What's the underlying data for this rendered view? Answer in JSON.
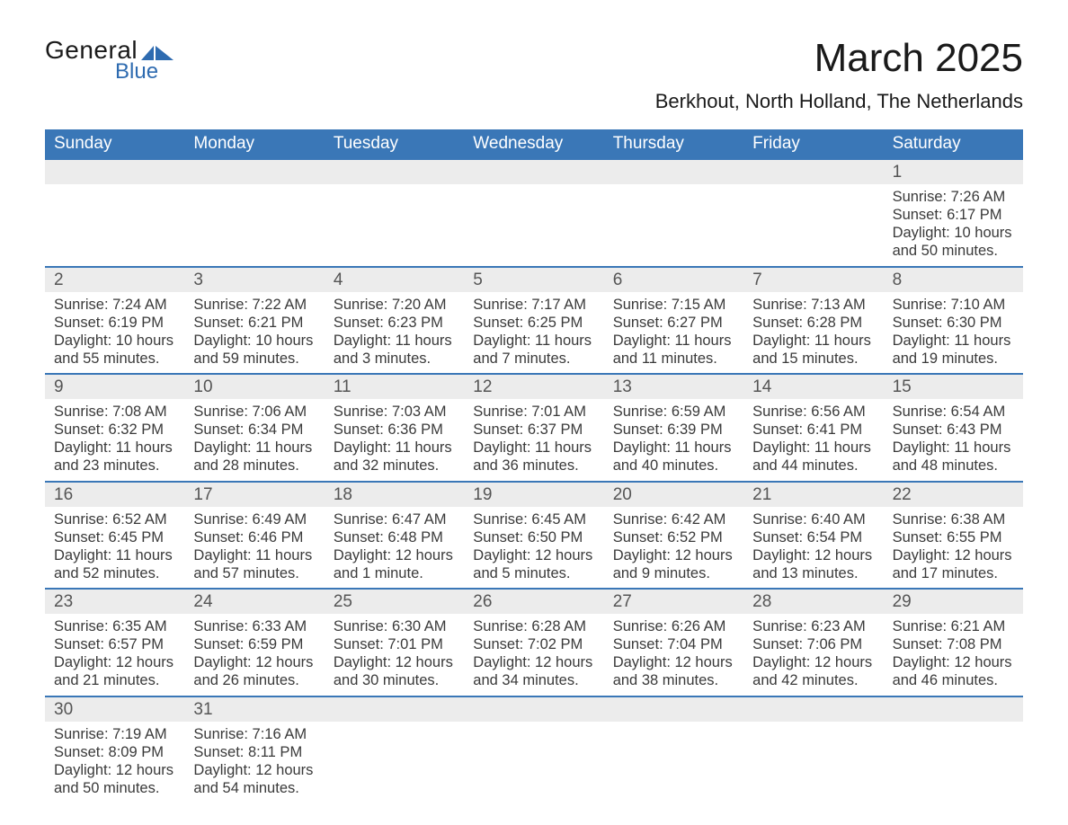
{
  "colors": {
    "header_bg": "#3a77b7",
    "header_text": "#ffffff",
    "daynum_bg": "#ececec",
    "border": "#3a77b7",
    "body_text": "#3a3a3a",
    "logo_blue": "#2e6bb0"
  },
  "logo": {
    "general": "General",
    "blue": "Blue"
  },
  "title": "March 2025",
  "location": "Berkhout, North Holland, The Netherlands",
  "day_headers": [
    "Sunday",
    "Monday",
    "Tuesday",
    "Wednesday",
    "Thursday",
    "Friday",
    "Saturday"
  ],
  "weeks": [
    [
      {
        "num": "",
        "sunrise": "",
        "sunset": "",
        "daylight": ""
      },
      {
        "num": "",
        "sunrise": "",
        "sunset": "",
        "daylight": ""
      },
      {
        "num": "",
        "sunrise": "",
        "sunset": "",
        "daylight": ""
      },
      {
        "num": "",
        "sunrise": "",
        "sunset": "",
        "daylight": ""
      },
      {
        "num": "",
        "sunrise": "",
        "sunset": "",
        "daylight": ""
      },
      {
        "num": "",
        "sunrise": "",
        "sunset": "",
        "daylight": ""
      },
      {
        "num": "1",
        "sunrise": "Sunrise: 7:26 AM",
        "sunset": "Sunset: 6:17 PM",
        "daylight": "Daylight: 10 hours and 50 minutes."
      }
    ],
    [
      {
        "num": "2",
        "sunrise": "Sunrise: 7:24 AM",
        "sunset": "Sunset: 6:19 PM",
        "daylight": "Daylight: 10 hours and 55 minutes."
      },
      {
        "num": "3",
        "sunrise": "Sunrise: 7:22 AM",
        "sunset": "Sunset: 6:21 PM",
        "daylight": "Daylight: 10 hours and 59 minutes."
      },
      {
        "num": "4",
        "sunrise": "Sunrise: 7:20 AM",
        "sunset": "Sunset: 6:23 PM",
        "daylight": "Daylight: 11 hours and 3 minutes."
      },
      {
        "num": "5",
        "sunrise": "Sunrise: 7:17 AM",
        "sunset": "Sunset: 6:25 PM",
        "daylight": "Daylight: 11 hours and 7 minutes."
      },
      {
        "num": "6",
        "sunrise": "Sunrise: 7:15 AM",
        "sunset": "Sunset: 6:27 PM",
        "daylight": "Daylight: 11 hours and 11 minutes."
      },
      {
        "num": "7",
        "sunrise": "Sunrise: 7:13 AM",
        "sunset": "Sunset: 6:28 PM",
        "daylight": "Daylight: 11 hours and 15 minutes."
      },
      {
        "num": "8",
        "sunrise": "Sunrise: 7:10 AM",
        "sunset": "Sunset: 6:30 PM",
        "daylight": "Daylight: 11 hours and 19 minutes."
      }
    ],
    [
      {
        "num": "9",
        "sunrise": "Sunrise: 7:08 AM",
        "sunset": "Sunset: 6:32 PM",
        "daylight": "Daylight: 11 hours and 23 minutes."
      },
      {
        "num": "10",
        "sunrise": "Sunrise: 7:06 AM",
        "sunset": "Sunset: 6:34 PM",
        "daylight": "Daylight: 11 hours and 28 minutes."
      },
      {
        "num": "11",
        "sunrise": "Sunrise: 7:03 AM",
        "sunset": "Sunset: 6:36 PM",
        "daylight": "Daylight: 11 hours and 32 minutes."
      },
      {
        "num": "12",
        "sunrise": "Sunrise: 7:01 AM",
        "sunset": "Sunset: 6:37 PM",
        "daylight": "Daylight: 11 hours and 36 minutes."
      },
      {
        "num": "13",
        "sunrise": "Sunrise: 6:59 AM",
        "sunset": "Sunset: 6:39 PM",
        "daylight": "Daylight: 11 hours and 40 minutes."
      },
      {
        "num": "14",
        "sunrise": "Sunrise: 6:56 AM",
        "sunset": "Sunset: 6:41 PM",
        "daylight": "Daylight: 11 hours and 44 minutes."
      },
      {
        "num": "15",
        "sunrise": "Sunrise: 6:54 AM",
        "sunset": "Sunset: 6:43 PM",
        "daylight": "Daylight: 11 hours and 48 minutes."
      }
    ],
    [
      {
        "num": "16",
        "sunrise": "Sunrise: 6:52 AM",
        "sunset": "Sunset: 6:45 PM",
        "daylight": "Daylight: 11 hours and 52 minutes."
      },
      {
        "num": "17",
        "sunrise": "Sunrise: 6:49 AM",
        "sunset": "Sunset: 6:46 PM",
        "daylight": "Daylight: 11 hours and 57 minutes."
      },
      {
        "num": "18",
        "sunrise": "Sunrise: 6:47 AM",
        "sunset": "Sunset: 6:48 PM",
        "daylight": "Daylight: 12 hours and 1 minute."
      },
      {
        "num": "19",
        "sunrise": "Sunrise: 6:45 AM",
        "sunset": "Sunset: 6:50 PM",
        "daylight": "Daylight: 12 hours and 5 minutes."
      },
      {
        "num": "20",
        "sunrise": "Sunrise: 6:42 AM",
        "sunset": "Sunset: 6:52 PM",
        "daylight": "Daylight: 12 hours and 9 minutes."
      },
      {
        "num": "21",
        "sunrise": "Sunrise: 6:40 AM",
        "sunset": "Sunset: 6:54 PM",
        "daylight": "Daylight: 12 hours and 13 minutes."
      },
      {
        "num": "22",
        "sunrise": "Sunrise: 6:38 AM",
        "sunset": "Sunset: 6:55 PM",
        "daylight": "Daylight: 12 hours and 17 minutes."
      }
    ],
    [
      {
        "num": "23",
        "sunrise": "Sunrise: 6:35 AM",
        "sunset": "Sunset: 6:57 PM",
        "daylight": "Daylight: 12 hours and 21 minutes."
      },
      {
        "num": "24",
        "sunrise": "Sunrise: 6:33 AM",
        "sunset": "Sunset: 6:59 PM",
        "daylight": "Daylight: 12 hours and 26 minutes."
      },
      {
        "num": "25",
        "sunrise": "Sunrise: 6:30 AM",
        "sunset": "Sunset: 7:01 PM",
        "daylight": "Daylight: 12 hours and 30 minutes."
      },
      {
        "num": "26",
        "sunrise": "Sunrise: 6:28 AM",
        "sunset": "Sunset: 7:02 PM",
        "daylight": "Daylight: 12 hours and 34 minutes."
      },
      {
        "num": "27",
        "sunrise": "Sunrise: 6:26 AM",
        "sunset": "Sunset: 7:04 PM",
        "daylight": "Daylight: 12 hours and 38 minutes."
      },
      {
        "num": "28",
        "sunrise": "Sunrise: 6:23 AM",
        "sunset": "Sunset: 7:06 PM",
        "daylight": "Daylight: 12 hours and 42 minutes."
      },
      {
        "num": "29",
        "sunrise": "Sunrise: 6:21 AM",
        "sunset": "Sunset: 7:08 PM",
        "daylight": "Daylight: 12 hours and 46 minutes."
      }
    ],
    [
      {
        "num": "30",
        "sunrise": "Sunrise: 7:19 AM",
        "sunset": "Sunset: 8:09 PM",
        "daylight": "Daylight: 12 hours and 50 minutes."
      },
      {
        "num": "31",
        "sunrise": "Sunrise: 7:16 AM",
        "sunset": "Sunset: 8:11 PM",
        "daylight": "Daylight: 12 hours and 54 minutes."
      },
      {
        "num": "",
        "sunrise": "",
        "sunset": "",
        "daylight": ""
      },
      {
        "num": "",
        "sunrise": "",
        "sunset": "",
        "daylight": ""
      },
      {
        "num": "",
        "sunrise": "",
        "sunset": "",
        "daylight": ""
      },
      {
        "num": "",
        "sunrise": "",
        "sunset": "",
        "daylight": ""
      },
      {
        "num": "",
        "sunrise": "",
        "sunset": "",
        "daylight": ""
      }
    ]
  ]
}
